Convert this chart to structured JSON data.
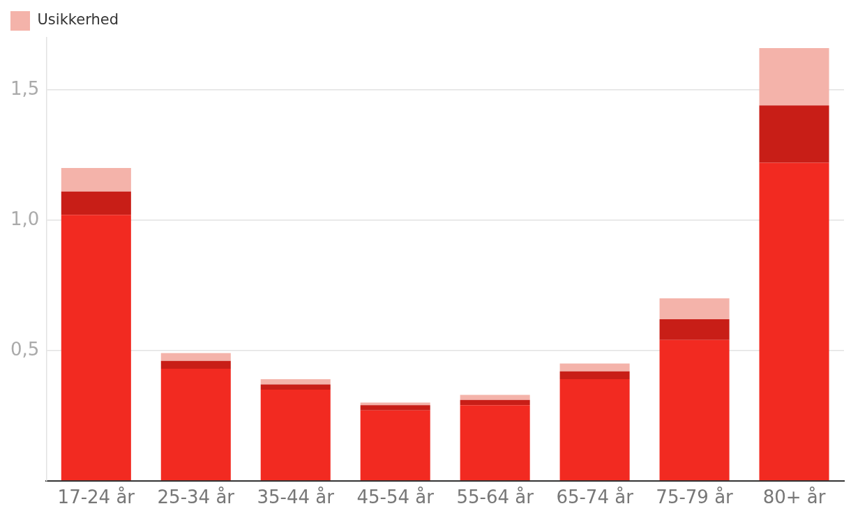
{
  "chart_data": {
    "type": "bar",
    "stacked": true,
    "categories": [
      "17-24 år",
      "25-34 år",
      "35-44 år",
      "45-54 år",
      "55-64 år",
      "65-74 år",
      "75-79 år",
      "80+ år"
    ],
    "series": [
      {
        "color": "#f22a21",
        "values": [
          1.02,
          0.43,
          0.35,
          0.27,
          0.29,
          0.39,
          0.54,
          1.22
        ]
      },
      {
        "color": "#c81e17",
        "values": [
          0.09,
          0.03,
          0.02,
          0.02,
          0.02,
          0.03,
          0.08,
          0.22
        ]
      },
      {
        "name": "Usikkerhed",
        "color": "#f4b3aa",
        "values": [
          0.09,
          0.03,
          0.02,
          0.01,
          0.02,
          0.03,
          0.08,
          0.22
        ]
      }
    ],
    "ylim": [
      0,
      1.7
    ],
    "yticks": [
      {
        "value": 0,
        "label": null
      },
      {
        "value": 0.5,
        "label": "0,5"
      },
      {
        "value": 1,
        "label": "1,0"
      },
      {
        "value": 1.5,
        "label": "1,5"
      }
    ],
    "grid": "y",
    "legend": "top left"
  }
}
